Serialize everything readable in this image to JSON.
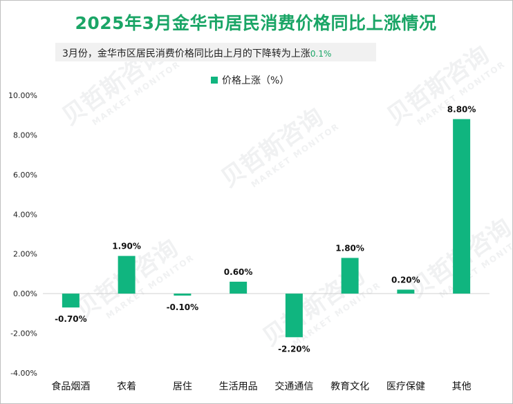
{
  "title": "2025年3月金华市居民消费价格同比上涨情况",
  "subtitle": {
    "text": "3月份，金华市区居民消费价格同比由上月的下降转为上涨",
    "highlight": "0.1%"
  },
  "watermark": {
    "cn": "贝哲斯咨询",
    "en": "MARKET MONITOR"
  },
  "colors": {
    "bar": "#10b57f",
    "title": "#1aa566"
  },
  "chart_data": {
    "type": "bar",
    "title": "2025年3月金华市居民消费价格同比上涨情况",
    "xlabel": "",
    "ylabel": "",
    "legend": "top-center",
    "grid": false,
    "ylim": [
      -4,
      10
    ],
    "yticks": [
      10,
      8,
      6,
      4,
      2,
      0,
      -2,
      -4
    ],
    "ytick_labels": [
      "10.00%",
      "8.00%",
      "6.00%",
      "4.00%",
      "2.00%",
      "0.00%",
      "-2.00%",
      "-4.00%"
    ],
    "categories": [
      "食品烟酒",
      "衣着",
      "居住",
      "生活用品",
      "交通通信",
      "教育文化",
      "医疗保健",
      "其他"
    ],
    "series": [
      {
        "name": "价格上涨（%）",
        "values": [
          -0.7,
          1.9,
          -0.1,
          0.6,
          -2.2,
          1.8,
          0.2,
          8.8
        ],
        "labels": [
          "-0.70%",
          "1.90%",
          "-0.10%",
          "0.60%",
          "-2.20%",
          "1.80%",
          "0.20%",
          "8.80%"
        ]
      }
    ]
  }
}
